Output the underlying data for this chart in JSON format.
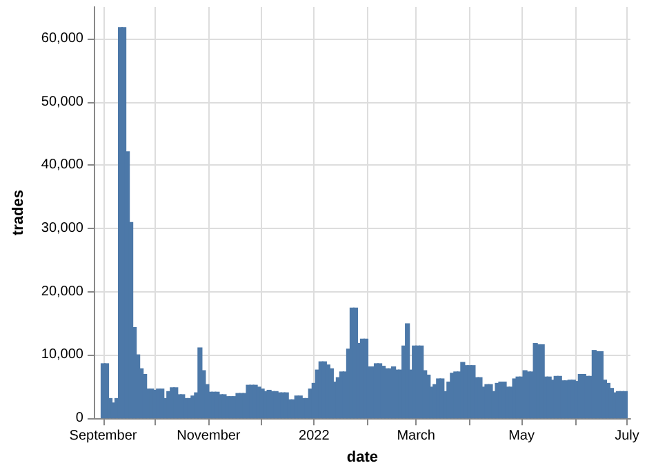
{
  "chart_data": {
    "type": "bar",
    "xlabel": "date",
    "ylabel": "trades",
    "color": "#4c78a8",
    "grid": true,
    "xlim": [
      "2021-08-27",
      "2022-07-03"
    ],
    "xticks": [
      {
        "value": "2021-09-01",
        "label": "September"
      },
      {
        "value": "2021-10-01",
        "label": null
      },
      {
        "value": "2021-11-01",
        "label": "November"
      },
      {
        "value": "2021-12-01",
        "label": null
      },
      {
        "value": "2022-01-01",
        "label": "2022"
      },
      {
        "value": "2022-02-01",
        "label": null
      },
      {
        "value": "2022-03-01",
        "label": "March"
      },
      {
        "value": "2022-04-01",
        "label": null
      },
      {
        "value": "2022-05-01",
        "label": "May"
      },
      {
        "value": "2022-06-01",
        "label": null
      },
      {
        "value": "2022-07-01",
        "label": "July"
      }
    ],
    "ylim": [
      0,
      65000
    ],
    "yticks": [
      0,
      {
        "value": 10000,
        "label": "10,000"
      },
      {
        "value": 20000,
        "label": "20,000"
      },
      {
        "value": 30000,
        "label": "30,000"
      },
      {
        "value": 40000,
        "label": "40,000"
      },
      {
        "value": 50000,
        "label": "50,000"
      },
      {
        "value": 60000,
        "label": "60,000"
      }
    ],
    "x": [
      "2021-09-01",
      "2021-09-03",
      "2021-09-05",
      "2021-09-07",
      "2021-09-09",
      "2021-09-11",
      "2021-09-13",
      "2021-09-15",
      "2021-09-17",
      "2021-09-19",
      "2021-09-21",
      "2021-09-23",
      "2021-09-25",
      "2021-09-27",
      "2021-09-29",
      "2021-10-01",
      "2021-10-03",
      "2021-10-05",
      "2021-10-07",
      "2021-10-09",
      "2021-10-11",
      "2021-10-13",
      "2021-10-15",
      "2021-10-17",
      "2021-10-19",
      "2021-10-21",
      "2021-10-23",
      "2021-10-25",
      "2021-10-27",
      "2021-10-29",
      "2021-10-31",
      "2021-11-02",
      "2021-11-04",
      "2021-11-06",
      "2021-11-08",
      "2021-11-10",
      "2021-11-12",
      "2021-11-14",
      "2021-11-16",
      "2021-11-18",
      "2021-11-20",
      "2021-11-22",
      "2021-11-24",
      "2021-11-26",
      "2021-11-28",
      "2021-11-30",
      "2021-12-02",
      "2021-12-04",
      "2021-12-06",
      "2021-12-08",
      "2021-12-10",
      "2021-12-12",
      "2021-12-14",
      "2021-12-16",
      "2021-12-18",
      "2021-12-20",
      "2021-12-22",
      "2021-12-24",
      "2021-12-26",
      "2021-12-28",
      "2021-12-30",
      "2022-01-01",
      "2022-01-03",
      "2022-01-05",
      "2022-01-07",
      "2022-01-09",
      "2022-01-11",
      "2022-01-13",
      "2022-01-15",
      "2022-01-17",
      "2022-01-19",
      "2022-01-21",
      "2022-01-23",
      "2022-01-25",
      "2022-01-27",
      "2022-01-29",
      "2022-01-31",
      "2022-02-02",
      "2022-02-04",
      "2022-02-06",
      "2022-02-08",
      "2022-02-10",
      "2022-02-12",
      "2022-02-14",
      "2022-02-16",
      "2022-02-18",
      "2022-02-20",
      "2022-02-22",
      "2022-02-24",
      "2022-02-26",
      "2022-02-28",
      "2022-03-02",
      "2022-03-04",
      "2022-03-06",
      "2022-03-08",
      "2022-03-10",
      "2022-03-12",
      "2022-03-14",
      "2022-03-16",
      "2022-03-18",
      "2022-03-20",
      "2022-03-22",
      "2022-03-24",
      "2022-03-26",
      "2022-03-28",
      "2022-03-30",
      "2022-04-01",
      "2022-04-03",
      "2022-04-05",
      "2022-04-07",
      "2022-04-09",
      "2022-04-11",
      "2022-04-13",
      "2022-04-15",
      "2022-04-17",
      "2022-04-19",
      "2022-04-21",
      "2022-04-23",
      "2022-04-25",
      "2022-04-27",
      "2022-04-29",
      "2022-05-01",
      "2022-05-03",
      "2022-05-05",
      "2022-05-07",
      "2022-05-09",
      "2022-05-11",
      "2022-05-13",
      "2022-05-15",
      "2022-05-17",
      "2022-05-19",
      "2022-05-21",
      "2022-05-23",
      "2022-05-25",
      "2022-05-27",
      "2022-05-29",
      "2022-05-31",
      "2022-06-02",
      "2022-06-04",
      "2022-06-06",
      "2022-06-08",
      "2022-06-10",
      "2022-06-12",
      "2022-06-14",
      "2022-06-16",
      "2022-06-18",
      "2022-06-20",
      "2022-06-22",
      "2022-06-24",
      "2022-06-26",
      "2022-06-28",
      "2022-06-30"
    ],
    "values": [
      8700,
      8700,
      3200,
      2500,
      3200,
      61800,
      61800,
      42200,
      31000,
      14400,
      10100,
      7900,
      7000,
      4700,
      4700,
      4500,
      4700,
      4700,
      3200,
      4300,
      4900,
      4900,
      3800,
      3800,
      3200,
      3200,
      3600,
      4100,
      11200,
      7600,
      5400,
      4200,
      4200,
      4200,
      3800,
      3800,
      3500,
      3500,
      3500,
      4000,
      4000,
      4000,
      5300,
      5300,
      5300,
      5000,
      4700,
      4300,
      4500,
      4300,
      4300,
      4100,
      4100,
      4100,
      3000,
      3000,
      3600,
      3600,
      3200,
      3200,
      4700,
      5600,
      7700,
      9000,
      9000,
      8500,
      7900,
      5800,
      6500,
      7400,
      7400,
      11000,
      17500,
      17500,
      11900,
      12600,
      12600,
      8200,
      8200,
      8700,
      8700,
      8300,
      7900,
      7900,
      8200,
      7700,
      7700,
      11500,
      15000,
      7700,
      11500,
      11500,
      11500,
      7600,
      6900,
      5000,
      5400,
      6300,
      6300,
      4300,
      5800,
      7200,
      7400,
      7400,
      8900,
      8400,
      8400,
      8400,
      6500,
      6500,
      5000,
      5400,
      5400,
      4300,
      5600,
      5800,
      5800,
      5000,
      5000,
      6300,
      6600,
      6600,
      7600,
      7400,
      7400,
      11900,
      11700,
      11700,
      6600,
      6600,
      6100,
      6700,
      6700,
      6000,
      6000,
      6100,
      6100,
      5900,
      7000,
      7000,
      6700,
      6700,
      10800,
      10600,
      10600,
      6100,
      5600,
      4800,
      4100,
      4300,
      4300,
      4300
    ]
  }
}
